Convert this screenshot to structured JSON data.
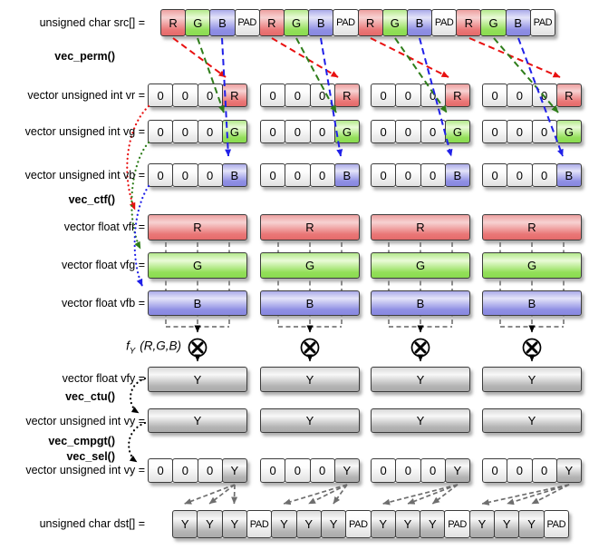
{
  "function_labels": {
    "vec_perm": "vec_perm()",
    "vec_ctf": "vec_ctf()",
    "fy_f": "f",
    "fy_sub": "Y",
    "fy_args": "(R,G,B)",
    "vec_ctu": "vec_ctu()",
    "vec_cmpgt": "vec_cmpgt()",
    "vec_sel": "vec_sel()"
  },
  "icons": {
    "multiply": "circle-x-multiply"
  },
  "rows": {
    "src": {
      "label": "unsigned char src[] =",
      "cells": [
        "R",
        "G",
        "B",
        "PAD",
        "R",
        "G",
        "B",
        "PAD",
        "R",
        "G",
        "B",
        "PAD",
        "R",
        "G",
        "B",
        "PAD"
      ],
      "cell_colors": [
        "r",
        "g",
        "b",
        "pad",
        "r",
        "g",
        "b",
        "pad",
        "r",
        "g",
        "b",
        "pad",
        "r",
        "g",
        "b",
        "pad"
      ]
    },
    "vr": {
      "label": "vector unsigned int vr =",
      "groups": [
        [
          "0",
          "0",
          "0",
          "R"
        ],
        [
          "0",
          "0",
          "0",
          "R"
        ],
        [
          "0",
          "0",
          "0",
          "R"
        ],
        [
          "0",
          "0",
          "0",
          "R"
        ]
      ],
      "colors": [
        "zero",
        "zero",
        "zero",
        "r"
      ]
    },
    "vg": {
      "label": "vector unsigned int vg =",
      "groups": [
        [
          "0",
          "0",
          "0",
          "G"
        ],
        [
          "0",
          "0",
          "0",
          "G"
        ],
        [
          "0",
          "0",
          "0",
          "G"
        ],
        [
          "0",
          "0",
          "0",
          "G"
        ]
      ],
      "colors": [
        "zero",
        "zero",
        "zero",
        "g"
      ]
    },
    "vb": {
      "label": "vector unsigned int vb =",
      "groups": [
        [
          "0",
          "0",
          "0",
          "B"
        ],
        [
          "0",
          "0",
          "0",
          "B"
        ],
        [
          "0",
          "0",
          "0",
          "B"
        ],
        [
          "0",
          "0",
          "0",
          "B"
        ]
      ],
      "colors": [
        "zero",
        "zero",
        "zero",
        "b"
      ]
    },
    "vfr": {
      "label": "vector float vfr =",
      "bars": [
        "R",
        "R",
        "R",
        "R"
      ],
      "color": "r"
    },
    "vfg": {
      "label": "vector float vfg =",
      "bars": [
        "G",
        "G",
        "G",
        "G"
      ],
      "color": "g"
    },
    "vfb": {
      "label": "vector float vfb =",
      "bars": [
        "B",
        "B",
        "B",
        "B"
      ],
      "color": "b"
    },
    "vfy": {
      "label": "vector float vfy =",
      "bars": [
        "Y",
        "Y",
        "Y",
        "Y"
      ],
      "color": "y"
    },
    "vy": {
      "label": "vector unsigned int vy =",
      "bars": [
        "Y",
        "Y",
        "Y",
        "Y"
      ],
      "color": "y"
    },
    "vy2": {
      "label": "vector unsigned int vy =",
      "groups": [
        [
          "0",
          "0",
          "0",
          "Y"
        ],
        [
          "0",
          "0",
          "0",
          "Y"
        ],
        [
          "0",
          "0",
          "0",
          "Y"
        ],
        [
          "0",
          "0",
          "0",
          "Y"
        ]
      ],
      "colors": [
        "zero",
        "zero",
        "zero",
        "y"
      ]
    },
    "dst": {
      "label": "unsigned char dst[] =",
      "cells": [
        "Y",
        "Y",
        "Y",
        "PAD",
        "Y",
        "Y",
        "Y",
        "PAD",
        "Y",
        "Y",
        "Y",
        "PAD",
        "Y",
        "Y",
        "Y",
        "PAD"
      ],
      "cell_colors": [
        "y",
        "y",
        "y",
        "pad",
        "y",
        "y",
        "y",
        "pad",
        "y",
        "y",
        "y",
        "pad",
        "y",
        "y",
        "y",
        "pad"
      ]
    }
  },
  "colors": {
    "red_arrow": "#e81010",
    "green_arrow": "#2e7d1a",
    "blue_arrow": "#2020e8",
    "gray_arrow": "#6e6e6e",
    "black": "#000000",
    "r_fill": "#e56a6a",
    "g_fill": "#8adc50",
    "b_fill": "#8888e0",
    "y_fill": "#ababab",
    "pad_fill": "#e1e1e1"
  }
}
